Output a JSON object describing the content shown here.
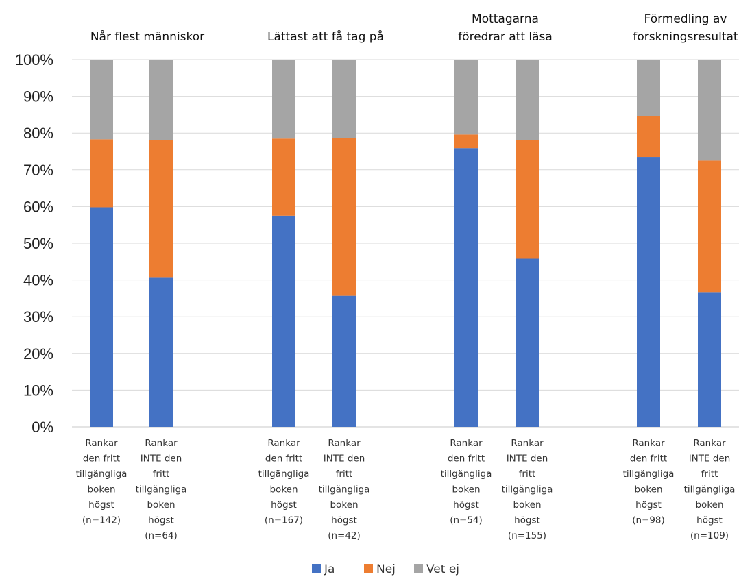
{
  "chart_data": {
    "type": "bar",
    "stacked": true,
    "percent": true,
    "ylim": [
      0,
      100
    ],
    "yticks": [
      "0%",
      "10%",
      "20%",
      "30%",
      "40%",
      "50%",
      "60%",
      "70%",
      "80%",
      "90%",
      "100%"
    ],
    "grid": true,
    "legend_position": "bottom",
    "groups": [
      {
        "title": [
          "Når flest människor"
        ]
      },
      {
        "title": [
          "Lättast att få tag på"
        ]
      },
      {
        "title": [
          "Mottagarna",
          "föredrar att läsa"
        ]
      },
      {
        "title": [
          "Förmedling av",
          "forskningsresultat"
        ]
      }
    ],
    "categories": [
      {
        "group": 0,
        "label": [
          "Rankar",
          "den fritt",
          "tillgängliga",
          "boken",
          "högst",
          "(n=142)"
        ]
      },
      {
        "group": 0,
        "label": [
          "Rankar",
          "INTE den",
          "fritt",
          "tillgängliga",
          "boken",
          "högst",
          "(n=64)"
        ]
      },
      {
        "group": 1,
        "label": [
          "Rankar",
          "den fritt",
          "tillgängliga",
          "boken",
          "högst",
          "(n=167)"
        ]
      },
      {
        "group": 1,
        "label": [
          "Rankar",
          "INTE den",
          "fritt",
          "tillgängliga",
          "boken",
          "högst",
          "(n=42)"
        ]
      },
      {
        "group": 2,
        "label": [
          "Rankar",
          "den fritt",
          "tillgängliga",
          "boken",
          "högst",
          "(n=54)"
        ]
      },
      {
        "group": 2,
        "label": [
          "Rankar",
          "INTE den",
          "fritt",
          "tillgängliga",
          "boken",
          "högst",
          "(n=155)"
        ]
      },
      {
        "group": 3,
        "label": [
          "Rankar",
          "den fritt",
          "tillgängliga",
          "boken",
          "högst",
          "(n=98)"
        ]
      },
      {
        "group": 3,
        "label": [
          "Rankar",
          "INTE den",
          "fritt",
          "tillgängliga",
          "boken",
          "högst",
          "(n=109)"
        ]
      }
    ],
    "series": [
      {
        "name": "Ja",
        "color": "#4472C4",
        "values": [
          59.8,
          40.6,
          57.5,
          35.7,
          75.9,
          45.8,
          73.5,
          36.7
        ]
      },
      {
        "name": "Nej",
        "color": "#ED7D31",
        "values": [
          18.5,
          37.5,
          21.0,
          42.9,
          3.7,
          32.3,
          11.2,
          35.8
        ]
      },
      {
        "name": "Vet ej",
        "color": "#A5A5A5",
        "values": [
          21.7,
          21.9,
          21.5,
          21.4,
          20.4,
          21.9,
          15.3,
          27.5
        ]
      }
    ]
  }
}
